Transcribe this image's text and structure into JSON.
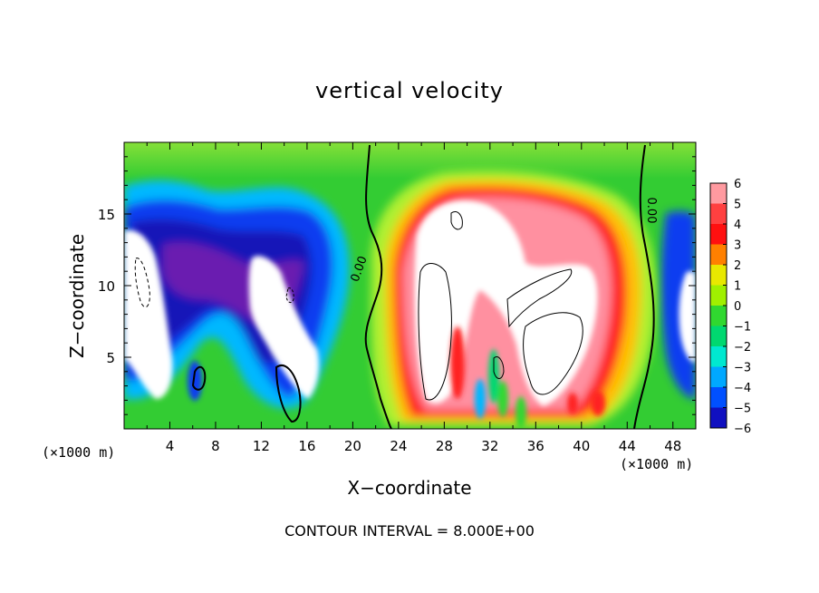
{
  "chart_data": {
    "type": "heatmap",
    "title": "vertical velocity",
    "xlabel": "X−coordinate",
    "ylabel": "Z−coordinate",
    "x_unit": "(×1000 m)",
    "xlim": [
      0,
      50
    ],
    "ylim": [
      0,
      20
    ],
    "xticks": [
      "4",
      "8",
      "12",
      "16",
      "20",
      "24",
      "28",
      "32",
      "36",
      "40",
      "44",
      "48"
    ],
    "yticks": [
      "5",
      "10",
      "15"
    ],
    "colorbar": {
      "levels": [
        "6",
        "5",
        "4",
        "3",
        "2",
        "1",
        "0",
        "−1",
        "−2",
        "−3",
        "−4",
        "−5",
        "−6"
      ],
      "colors": [
        "#ff9aa0",
        "#ff4040",
        "#ff1010",
        "#ff8000",
        "#e8e800",
        "#a0f000",
        "#30d830",
        "#00d870",
        "#00e8d0",
        "#00a8ff",
        "#0050ff",
        "#1010c0",
        "#8000b0"
      ]
    },
    "contour_labels": [
      "0.00",
      "0.00"
    ],
    "contour_interval": 8.0,
    "grid": false,
    "legend": "right colorbar",
    "annotation": "CONTOUR INTERVAL = 8.000E+00"
  },
  "colors": {
    "background": "#33cc33",
    "updraft_core": "#ffffff",
    "downdraft": "#1414c8"
  }
}
